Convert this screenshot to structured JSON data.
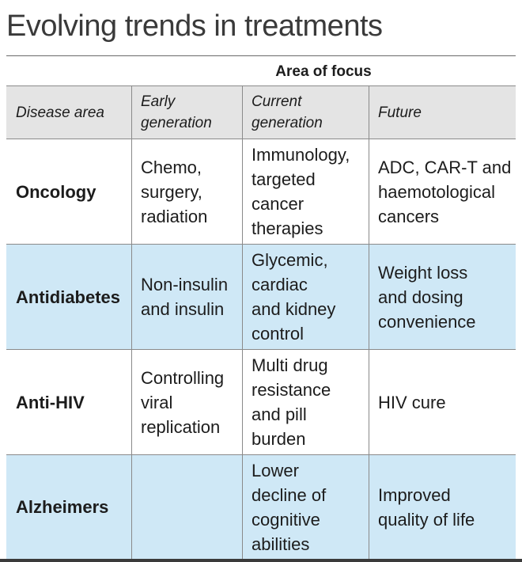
{
  "title": "Evolving trends in treatments",
  "group_header": "Area of focus",
  "columns": [
    "Disease area",
    "Early\ngeneration",
    "Current\ngeneration",
    "Future"
  ],
  "rows": [
    {
      "disease": "Oncology",
      "early": "Chemo,\nsurgery,\nradiation",
      "current": "Immunology,\ntargeted\ncancer\ntherapies",
      "future": "ADC, CAR-T and\nhaemotological\ncancers"
    },
    {
      "disease": "Antidiabetes",
      "early": "Non-insulin\nand insulin",
      "current": "Glycemic,\ncardiac\nand kidney\ncontrol",
      "future": "Weight loss\nand dosing\nconvenience"
    },
    {
      "disease": "Anti-HIV",
      "early": "Controlling\nviral\nreplication",
      "current": "Multi drug\nresistance\nand pill\nburden",
      "future": "HIV cure"
    },
    {
      "disease": "Alzheimers",
      "early": "",
      "current": "Lower\ndecline of\ncognitive\nabilities",
      "future": "Improved\nquality of life"
    }
  ],
  "colors": {
    "header_bg": "#e4e4e4",
    "highlight_row": "#cfe8f6",
    "rule": "#8a8a8a"
  }
}
